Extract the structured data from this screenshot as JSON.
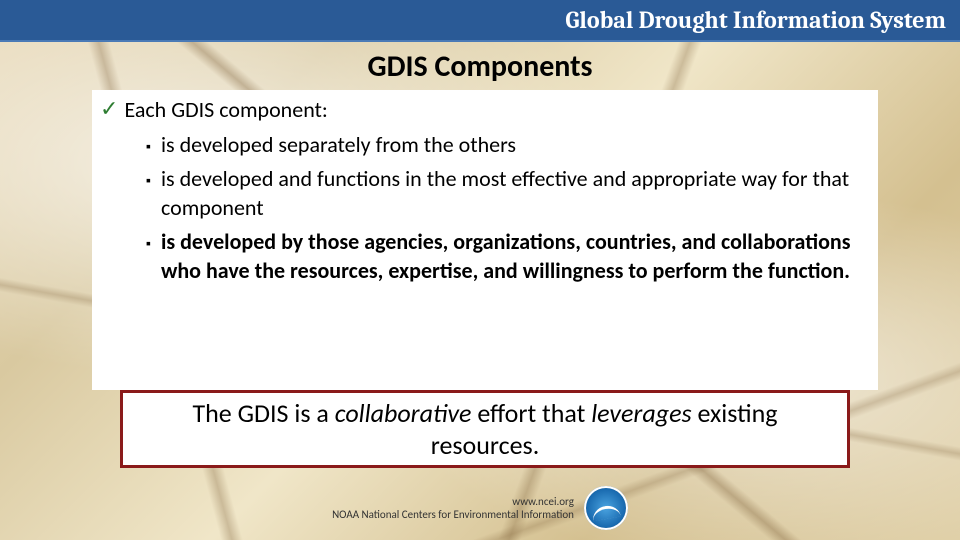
{
  "header": {
    "title": "Global Drought Information System",
    "bg_color": "#2a5a96",
    "text_color": "#ffffff"
  },
  "slide": {
    "title": "GDIS Components",
    "title_fontsize": 30,
    "body_fontsize": 22,
    "background_palette": [
      "#e8d9b8",
      "#d9c9a0",
      "#f0e6c8",
      "#d4c090",
      "#e0d0a8"
    ],
    "crack_color": "#785a32",
    "content_box_bg": "#ffffff"
  },
  "bullets": {
    "lead": "Each GDIS component:",
    "check_color": "#2e7d32",
    "square_color": "#000000",
    "items": [
      {
        "text": "is developed separately from the others",
        "bold": false
      },
      {
        "text": "is developed and functions in the most effective and appropriate way for that component",
        "bold": false
      },
      {
        "text": "is developed by those agencies, organizations, countries, and collaborations who have the resources, expertise, and willingness to perform the function.",
        "bold": true
      }
    ]
  },
  "callout": {
    "prefix": "The GDIS is a ",
    "em1": "collaborative",
    "mid": " effort that ",
    "em2": "leverages",
    "suffix": " existing resources.",
    "border_color": "#8a1a1a",
    "fontsize": 26
  },
  "footer": {
    "url": "www.ncei.org",
    "org": "NOAA National Centers for Environmental Information",
    "logo_colors": [
      "#4aa3e0",
      "#1a6bb0",
      "#0d3a6b"
    ],
    "fontsize": 11
  }
}
